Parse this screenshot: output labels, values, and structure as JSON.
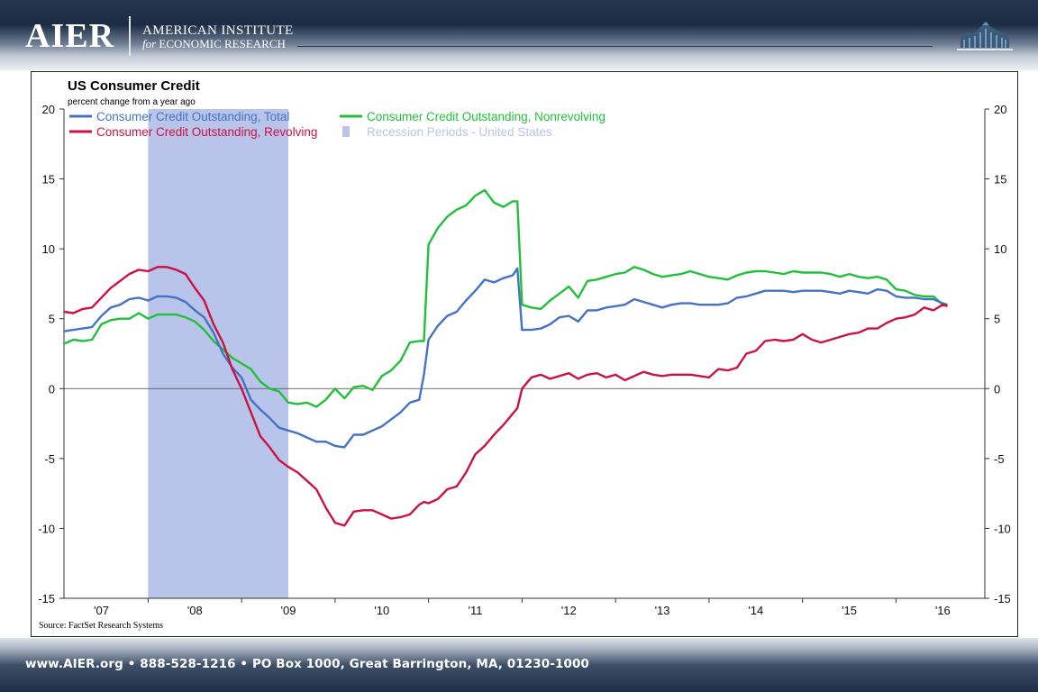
{
  "header": {
    "logo_text": "AIER",
    "institute_line1": "AMERICAN INSTITUTE",
    "institute_for": "for",
    "institute_line2": "ECONOMIC RESEARCH"
  },
  "footer": {
    "contact": "www.AIER.org • 888-528-1216 • PO Box 1000, Great Barrington, MA, 01230-1000"
  },
  "chart_data": {
    "type": "line",
    "title": "US Consumer Credit",
    "subtitle": "percent change from a year ago",
    "source": "Source: FactSet Research Systems",
    "ylim": [
      -15,
      20
    ],
    "yticks": [
      -15,
      -10,
      -5,
      0,
      5,
      10,
      15,
      20
    ],
    "xlim": [
      2006.6,
      2016.45
    ],
    "xticks": [
      {
        "label": "'07",
        "x": 2007.0
      },
      {
        "label": "'08",
        "x": 2008.0
      },
      {
        "label": "'09",
        "x": 2009.0
      },
      {
        "label": "'10",
        "x": 2010.0
      },
      {
        "label": "'11",
        "x": 2011.0
      },
      {
        "label": "'12",
        "x": 2012.0
      },
      {
        "label": "'13",
        "x": 2013.0
      },
      {
        "label": "'14",
        "x": 2014.0
      },
      {
        "label": "'15",
        "x": 2015.0
      },
      {
        "label": "'16",
        "x": 2016.0
      }
    ],
    "grid": false,
    "zero_line": true,
    "legend_placement": "top-left",
    "recession": {
      "name": "Recession Periods - United States",
      "start": 2007.5,
      "end": 2009.0,
      "color": "#b8c4ea"
    },
    "series": [
      {
        "name": "Consumer Credit Outstanding, Total",
        "color": "#4472c4",
        "x": [
          2006.6,
          2006.7,
          2006.8,
          2006.9,
          2007.0,
          2007.1,
          2007.2,
          2007.3,
          2007.4,
          2007.5,
          2007.6,
          2007.7,
          2007.8,
          2007.9,
          2008.0,
          2008.1,
          2008.2,
          2008.3,
          2008.4,
          2008.5,
          2008.6,
          2008.7,
          2008.8,
          2008.9,
          2009.0,
          2009.1,
          2009.2,
          2009.3,
          2009.4,
          2009.5,
          2009.6,
          2009.7,
          2009.8,
          2009.9,
          2010.0,
          2010.1,
          2010.2,
          2010.3,
          2010.4,
          2010.45,
          2010.5,
          2010.6,
          2010.7,
          2010.8,
          2010.9,
          2011.0,
          2011.1,
          2011.2,
          2011.3,
          2011.4,
          2011.45,
          2011.5,
          2011.6,
          2011.7,
          2011.8,
          2011.9,
          2012.0,
          2012.1,
          2012.2,
          2012.3,
          2012.4,
          2012.5,
          2012.6,
          2012.7,
          2012.8,
          2012.9,
          2013.0,
          2013.1,
          2013.2,
          2013.3,
          2013.4,
          2013.5,
          2013.6,
          2013.7,
          2013.8,
          2013.9,
          2014.0,
          2014.1,
          2014.2,
          2014.3,
          2014.4,
          2014.5,
          2014.6,
          2014.7,
          2014.8,
          2014.9,
          2015.0,
          2015.1,
          2015.2,
          2015.3,
          2015.4,
          2015.5,
          2015.6,
          2015.7,
          2015.8,
          2015.9,
          2016.0,
          2016.05
        ],
        "y": [
          4.1,
          4.2,
          4.3,
          4.4,
          5.2,
          5.8,
          6.0,
          6.4,
          6.5,
          6.3,
          6.6,
          6.6,
          6.5,
          6.2,
          5.6,
          5.1,
          4.0,
          2.5,
          1.5,
          0.8,
          -0.8,
          -1.5,
          -2.1,
          -2.8,
          -3.0,
          -3.2,
          -3.5,
          -3.8,
          -3.8,
          -4.1,
          -4.2,
          -3.3,
          -3.3,
          -3.0,
          -2.7,
          -2.2,
          -1.7,
          -1.0,
          -0.8,
          1.0,
          3.5,
          4.5,
          5.2,
          5.5,
          6.3,
          7.0,
          7.8,
          7.6,
          7.9,
          8.1,
          8.6,
          4.2,
          4.2,
          4.3,
          4.6,
          5.1,
          5.2,
          4.8,
          5.6,
          5.6,
          5.8,
          5.9,
          6.0,
          6.4,
          6.2,
          6.0,
          5.8,
          6.0,
          6.1,
          6.1,
          6.0,
          6.0,
          6.0,
          6.1,
          6.5,
          6.6,
          6.8,
          7.0,
          7.0,
          7.0,
          6.9,
          7.0,
          7.0,
          7.0,
          6.9,
          6.8,
          7.0,
          6.9,
          6.8,
          7.1,
          7.0,
          6.6,
          6.5,
          6.5,
          6.4,
          6.4,
          6.1,
          6.0
        ]
      },
      {
        "name": "Consumer Credit Outstanding, Nonrevolving",
        "color": "#22c03a",
        "x": [
          2006.6,
          2006.7,
          2006.8,
          2006.9,
          2007.0,
          2007.1,
          2007.2,
          2007.3,
          2007.4,
          2007.5,
          2007.6,
          2007.7,
          2007.8,
          2007.9,
          2008.0,
          2008.1,
          2008.2,
          2008.3,
          2008.4,
          2008.5,
          2008.6,
          2008.7,
          2008.8,
          2008.9,
          2009.0,
          2009.1,
          2009.2,
          2009.3,
          2009.4,
          2009.5,
          2009.6,
          2009.7,
          2009.8,
          2009.9,
          2010.0,
          2010.1,
          2010.2,
          2010.3,
          2010.4,
          2010.45,
          2010.5,
          2010.6,
          2010.7,
          2010.8,
          2010.9,
          2011.0,
          2011.1,
          2011.2,
          2011.3,
          2011.4,
          2011.45,
          2011.5,
          2011.6,
          2011.7,
          2011.8,
          2011.9,
          2012.0,
          2012.1,
          2012.2,
          2012.3,
          2012.4,
          2012.5,
          2012.6,
          2012.7,
          2012.8,
          2012.9,
          2013.0,
          2013.1,
          2013.2,
          2013.3,
          2013.4,
          2013.5,
          2013.6,
          2013.7,
          2013.8,
          2013.9,
          2014.0,
          2014.1,
          2014.2,
          2014.3,
          2014.4,
          2014.5,
          2014.6,
          2014.7,
          2014.8,
          2014.9,
          2015.0,
          2015.1,
          2015.2,
          2015.3,
          2015.4,
          2015.5,
          2015.6,
          2015.7,
          2015.8,
          2015.9,
          2016.0,
          2016.05
        ],
        "y": [
          3.2,
          3.5,
          3.4,
          3.5,
          4.6,
          4.9,
          5.0,
          5.0,
          5.4,
          5.0,
          5.3,
          5.3,
          5.3,
          5.1,
          4.8,
          4.2,
          3.4,
          2.8,
          2.2,
          1.8,
          1.4,
          0.5,
          0.0,
          -0.2,
          -1.0,
          -1.1,
          -1.0,
          -1.3,
          -0.8,
          0.0,
          -0.7,
          0.1,
          0.2,
          -0.1,
          0.9,
          1.3,
          2.0,
          3.3,
          3.4,
          3.4,
          10.3,
          11.5,
          12.3,
          12.8,
          13.1,
          13.8,
          14.2,
          13.3,
          13.0,
          13.4,
          13.4,
          6.0,
          5.8,
          5.7,
          6.3,
          6.8,
          7.3,
          6.5,
          7.7,
          7.8,
          8.0,
          8.2,
          8.3,
          8.7,
          8.5,
          8.2,
          8.0,
          8.1,
          8.2,
          8.4,
          8.2,
          8.0,
          7.9,
          7.8,
          8.1,
          8.3,
          8.4,
          8.4,
          8.3,
          8.2,
          8.4,
          8.3,
          8.3,
          8.3,
          8.2,
          8.0,
          8.2,
          8.0,
          7.9,
          8.0,
          7.8,
          7.1,
          7.0,
          6.7,
          6.6,
          6.6,
          6.0,
          6.0
        ]
      },
      {
        "name": "Consumer Credit Outstanding, Revolving",
        "color": "#cc1144",
        "x": [
          2006.6,
          2006.7,
          2006.8,
          2006.9,
          2007.0,
          2007.1,
          2007.2,
          2007.3,
          2007.4,
          2007.5,
          2007.6,
          2007.7,
          2007.8,
          2007.9,
          2008.0,
          2008.1,
          2008.2,
          2008.3,
          2008.4,
          2008.5,
          2008.6,
          2008.7,
          2008.8,
          2008.9,
          2009.0,
          2009.1,
          2009.2,
          2009.3,
          2009.4,
          2009.5,
          2009.6,
          2009.7,
          2009.8,
          2009.9,
          2010.0,
          2010.1,
          2010.2,
          2010.3,
          2010.4,
          2010.45,
          2010.5,
          2010.6,
          2010.7,
          2010.8,
          2010.9,
          2011.0,
          2011.1,
          2011.2,
          2011.3,
          2011.4,
          2011.45,
          2011.5,
          2011.6,
          2011.7,
          2011.8,
          2011.9,
          2012.0,
          2012.1,
          2012.2,
          2012.3,
          2012.4,
          2012.5,
          2012.6,
          2012.7,
          2012.8,
          2012.9,
          2013.0,
          2013.1,
          2013.2,
          2013.3,
          2013.4,
          2013.5,
          2013.6,
          2013.7,
          2013.8,
          2013.9,
          2014.0,
          2014.1,
          2014.2,
          2014.3,
          2014.4,
          2014.5,
          2014.6,
          2014.7,
          2014.8,
          2014.9,
          2015.0,
          2015.1,
          2015.2,
          2015.3,
          2015.4,
          2015.5,
          2015.6,
          2015.7,
          2015.8,
          2015.9,
          2016.0,
          2016.05
        ],
        "y": [
          5.5,
          5.4,
          5.7,
          5.8,
          6.5,
          7.2,
          7.7,
          8.2,
          8.5,
          8.4,
          8.7,
          8.7,
          8.5,
          8.2,
          7.2,
          6.3,
          4.6,
          3.3,
          1.4,
          0.0,
          -1.7,
          -3.4,
          -4.2,
          -5.1,
          -5.6,
          -6.0,
          -6.6,
          -7.2,
          -8.5,
          -9.6,
          -9.8,
          -8.8,
          -8.7,
          -8.7,
          -9.0,
          -9.3,
          -9.2,
          -9.0,
          -8.3,
          -8.1,
          -8.2,
          -7.9,
          -7.2,
          -7.0,
          -6.0,
          -4.7,
          -4.1,
          -3.3,
          -2.6,
          -1.8,
          -1.4,
          0.0,
          0.8,
          1.0,
          0.7,
          0.9,
          1.1,
          0.7,
          1.0,
          1.1,
          0.8,
          1.0,
          0.6,
          0.9,
          1.2,
          1.0,
          0.9,
          1.0,
          1.0,
          1.0,
          0.9,
          0.8,
          1.4,
          1.3,
          1.5,
          2.5,
          2.7,
          3.4,
          3.5,
          3.4,
          3.5,
          3.9,
          3.5,
          3.3,
          3.5,
          3.7,
          3.9,
          4.0,
          4.3,
          4.3,
          4.7,
          5.0,
          5.1,
          5.3,
          5.8,
          5.6,
          6.0,
          5.9
        ]
      }
    ]
  }
}
